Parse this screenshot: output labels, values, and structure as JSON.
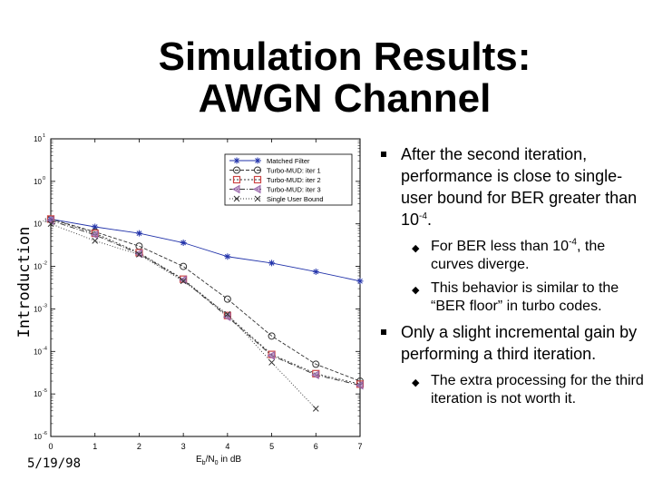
{
  "slide": {
    "title_line1": "Simulation Results:",
    "title_line2": "AWGN Channel",
    "side_label": "Introduction",
    "date": "5/19/98"
  },
  "bullets": [
    {
      "text": "After the second iteration, performance is close to single-user bound for BER greater than 10",
      "sup": "-4",
      "tail": ".",
      "sub": [
        {
          "text": "For BER less than 10",
          "sup": "-4",
          "tail": ", the curves diverge."
        },
        {
          "text": "This behavior is similar to the “BER floor” in turbo codes.",
          "sup": "",
          "tail": ""
        }
      ]
    },
    {
      "text": "Only a slight incremental gain by performing a third iteration.",
      "sup": "",
      "tail": "",
      "sub": [
        {
          "text": "The extra processing for the third iteration is not worth it.",
          "sup": "",
          "tail": ""
        }
      ]
    }
  ],
  "colors": {
    "accent_red": "#cc4444",
    "marker_purple": "#9966aa",
    "line_blue": "#2233aa"
  },
  "icons": {
    "bullet": "square-bullet-icon",
    "sub_bullet": "diamond-bullet-icon"
  },
  "chart_data": {
    "type": "line",
    "xlabel": "E",
    "xlabel_sub": "b",
    "xlabel_rest": "/N",
    "xlabel_sub2": "0",
    "xlabel_tail": " in dB",
    "xlim": [
      0,
      7
    ],
    "x_ticks": [
      "0",
      "1",
      "2",
      "3",
      "4",
      "5",
      "6",
      "7"
    ],
    "ylog": true,
    "ylim_exp": [
      -6,
      1
    ],
    "y_ticks": [
      {
        "base": "10",
        "exp": "1"
      },
      {
        "base": "10",
        "exp": "0"
      },
      {
        "base": "10",
        "exp": "-1"
      },
      {
        "base": "10",
        "exp": "-2"
      },
      {
        "base": "10",
        "exp": "-3"
      },
      {
        "base": "10",
        "exp": "-4"
      },
      {
        "base": "10",
        "exp": "-5"
      },
      {
        "base": "10",
        "exp": "-6"
      }
    ],
    "legend_placement": "top-right",
    "grid": false,
    "series": [
      {
        "name": "Matched Filter",
        "marker": "star",
        "dash": "",
        "x": [
          0,
          1,
          2,
          3,
          4,
          5,
          6,
          7
        ],
        "y": [
          0.13,
          0.085,
          0.06,
          0.036,
          0.017,
          0.012,
          0.0075,
          0.0045
        ]
      },
      {
        "name": "Turbo-MUD: iter 1",
        "marker": "circle",
        "dash": "4 2",
        "x": [
          0,
          1,
          2,
          3,
          4,
          5,
          6,
          7
        ],
        "y": [
          0.13,
          0.065,
          0.03,
          0.01,
          0.0017,
          0.00023,
          5e-05,
          2e-05
        ]
      },
      {
        "name": "Turbo-MUD: iter 2",
        "marker": "square",
        "dash": "2 2",
        "x": [
          0,
          1,
          2,
          3,
          4,
          5,
          6,
          7
        ],
        "y": [
          0.13,
          0.06,
          0.021,
          0.005,
          0.0007,
          8.5e-05,
          3e-05,
          1.7e-05
        ]
      },
      {
        "name": "Turbo-MUD: iter 3",
        "marker": "triangle",
        "dash": "6 2 1 2",
        "x": [
          0,
          1,
          2,
          3,
          4,
          5,
          6,
          7
        ],
        "y": [
          0.12,
          0.055,
          0.02,
          0.0048,
          0.00065,
          8e-05,
          2.8e-05,
          1.6e-05
        ]
      },
      {
        "name": "Single User Bound",
        "marker": "x",
        "dash": "1 2",
        "x": [
          0,
          1,
          2,
          3,
          4,
          5,
          6
        ],
        "y": [
          0.1,
          0.04,
          0.019,
          0.0045,
          0.00075,
          5.5e-05,
          4.5e-06
        ]
      }
    ]
  }
}
